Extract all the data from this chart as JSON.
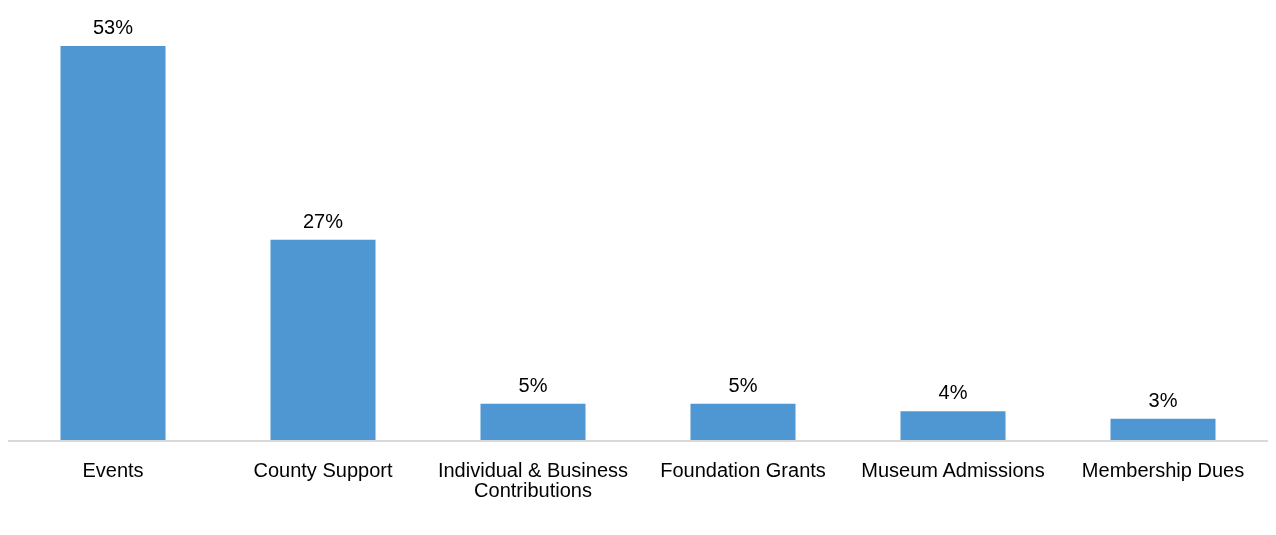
{
  "chart_data": {
    "type": "bar",
    "categories": [
      "Events",
      "County Support",
      "Individual & Business Contributions",
      "Foundation Grants",
      "Museum Admissions",
      "Membership Dues"
    ],
    "values": [
      53,
      27,
      5,
      5,
      4,
      3
    ],
    "value_labels": [
      "53%",
      "27%",
      "5%",
      "5%",
      "4%",
      "3%"
    ],
    "color": "#4f97d3"
  }
}
